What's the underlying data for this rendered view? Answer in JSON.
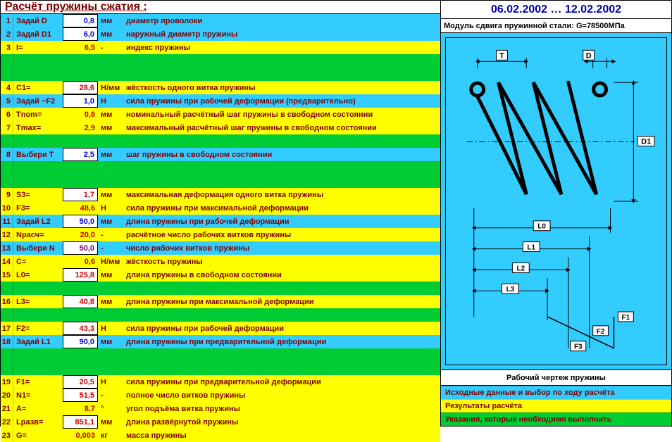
{
  "title": "Расчёт пружины сжатия :",
  "date_range": "06.02.2002 … 12.02.2002",
  "right_header": "Модуль сдвига пружинной стали: G=78500МПа",
  "drawing_caption": "Рабочий чертеж пружины",
  "colors": {
    "blue": "#33ccff",
    "green": "#00cc33",
    "yellow": "#ffff00",
    "white": "#ffffff"
  },
  "rows": [
    {
      "n": "1",
      "label": "Задай D",
      "val": "0,8",
      "unit": "мм",
      "desc": "диаметр проволоки",
      "bg": "blue",
      "box": true,
      "vc": "blue"
    },
    {
      "n": "2",
      "label": "Задай D1",
      "val": "6,0",
      "unit": "мм",
      "desc": "наружный диаметр пружины",
      "bg": "blue",
      "box": true,
      "vc": "blue"
    },
    {
      "n": "3",
      "label": "I=",
      "val": "6,5",
      "unit": "-",
      "desc": "индекс пружины",
      "bg": "yellow",
      "box": false,
      "vc": "red"
    },
    {
      "n": "",
      "label": "",
      "val": "",
      "unit": "",
      "desc": "",
      "bg": "green",
      "box": false
    },
    {
      "n": "",
      "label": "",
      "val": "",
      "unit": "",
      "desc": "",
      "bg": "green",
      "box": false
    },
    {
      "n": "4",
      "label": "C1=",
      "val": "28,6",
      "unit": "Н/мм",
      "desc": "жёсткость одного витка пружины",
      "bg": "yellow",
      "box": true,
      "vc": "red"
    },
    {
      "n": "5",
      "label": "Задай ~F2",
      "val": "1,0",
      "unit": "Н",
      "desc": "сила пружины при рабочей деформации (предварительно)",
      "bg": "blue",
      "box": true,
      "vc": "blue"
    },
    {
      "n": "6",
      "label": "Tnom=",
      "val": "0,8",
      "unit": "мм",
      "desc": "номинальный расчётный шаг пружины в свободном состоянии",
      "bg": "yellow",
      "box": false,
      "vc": "red"
    },
    {
      "n": "7",
      "label": "Tmax=",
      "val": "2,9",
      "unit": "мм",
      "desc": "максимальный расчётный шаг пружины в свободном состоянии",
      "bg": "yellow",
      "box": false,
      "vc": "red"
    },
    {
      "n": "",
      "label": "",
      "val": "",
      "unit": "",
      "desc": "",
      "bg": "green",
      "box": false
    },
    {
      "n": "8",
      "label": "Выбери T",
      "val": "2,5",
      "unit": "мм",
      "desc": "шаг пружины в свободном состоянии",
      "bg": "blue",
      "box": true,
      "vc": "blue"
    },
    {
      "n": "",
      "label": "",
      "val": "",
      "unit": "",
      "desc": "",
      "bg": "green",
      "box": false
    },
    {
      "n": "",
      "label": "",
      "val": "",
      "unit": "",
      "desc": "",
      "bg": "green",
      "box": false
    },
    {
      "n": "9",
      "label": "S3=",
      "val": "1,7",
      "unit": "мм",
      "desc": "максимальная деформация одного витка пружины",
      "bg": "yellow",
      "box": true,
      "vc": "red"
    },
    {
      "n": "10",
      "label": "F3=",
      "val": "48,6",
      "unit": "Н",
      "desc": "сила пружины при максимальной деформации",
      "bg": "yellow",
      "box": false,
      "vc": "red"
    },
    {
      "n": "11",
      "label": "Задай L2",
      "val": "50,0",
      "unit": "мм",
      "desc": "длина пружины при рабочей деформации",
      "bg": "blue",
      "box": true,
      "vc": "blue"
    },
    {
      "n": "12",
      "label": "Nрасч=",
      "val": "20,0",
      "unit": "-",
      "desc": "расчётное число рабочих витков пружины",
      "bg": "yellow",
      "box": false,
      "vc": "red"
    },
    {
      "n": "13",
      "label": "Выбери N",
      "val": "50,0",
      "unit": "-",
      "desc": "число рабочих витков пружины",
      "bg": "blue",
      "box": true,
      "vc": "purple"
    },
    {
      "n": "14",
      "label": "C=",
      "val": "0,6",
      "unit": "Н/мм",
      "desc": "жёсткость пружины",
      "bg": "yellow",
      "box": false,
      "vc": "red"
    },
    {
      "n": "15",
      "label": "L0=",
      "val": "125,8",
      "unit": "мм",
      "desc": "длина пружины в свободном состоянии",
      "bg": "yellow",
      "box": true,
      "vc": "red"
    },
    {
      "n": "",
      "label": "",
      "val": "",
      "unit": "",
      "desc": "",
      "bg": "green",
      "box": false
    },
    {
      "n": "16",
      "label": "L3=",
      "val": "40,8",
      "unit": "мм",
      "desc": "длина пружины при максимальной деформации",
      "bg": "yellow",
      "box": true,
      "vc": "red"
    },
    {
      "n": "",
      "label": "",
      "val": "",
      "unit": "",
      "desc": "",
      "bg": "green",
      "box": false
    },
    {
      "n": "17",
      "label": "F2=",
      "val": "43,3",
      "unit": "Н",
      "desc": "сила пружины при рабочей деформации",
      "bg": "yellow",
      "box": true,
      "vc": "red"
    },
    {
      "n": "18",
      "label": "Задай L1",
      "val": "90,0",
      "unit": "мм",
      "desc": "длина пружины при предварительной деформации",
      "bg": "blue",
      "box": true,
      "vc": "blue"
    },
    {
      "n": "",
      "label": "",
      "val": "",
      "unit": "",
      "desc": "",
      "bg": "green",
      "box": false
    },
    {
      "n": "",
      "label": "",
      "val": "",
      "unit": "",
      "desc": "",
      "bg": "green",
      "box": false
    },
    {
      "n": "19",
      "label": "F1=",
      "val": "20,5",
      "unit": "Н",
      "desc": "сила пружины при предварительной деформации",
      "bg": "yellow",
      "box": true,
      "vc": "red"
    },
    {
      "n": "20",
      "label": "N1=",
      "val": "51,5",
      "unit": "-",
      "desc": "полное число витков пружины",
      "bg": "yellow",
      "box": true,
      "vc": "red"
    },
    {
      "n": "21",
      "label": "A=",
      "val": "8,7",
      "unit": "°",
      "desc": "угол подъёма витка пружины",
      "bg": "yellow",
      "box": false,
      "vc": "red"
    },
    {
      "n": "22",
      "label": "Lразв=",
      "val": "851,1",
      "unit": "мм",
      "desc": "длина развёрнутой пружины",
      "bg": "yellow",
      "box": true,
      "vc": "red"
    },
    {
      "n": "23",
      "label": "G=",
      "val": "0,003",
      "unit": "кг",
      "desc": "масса пружины",
      "bg": "yellow",
      "box": false,
      "vc": "red"
    }
  ],
  "legend": [
    {
      "text": "Исходные данные и выбор по ходу расчёта",
      "bg": "blue"
    },
    {
      "text": "Результаты расчёта",
      "bg": "yellow"
    },
    {
      "text": "Указания, которые необходимо выполнить",
      "bg": "green"
    }
  ],
  "diagram_labels": {
    "T": "T",
    "D": "D",
    "D1": "D1",
    "L0": "L0",
    "L1": "L1",
    "L2": "L2",
    "L3": "L3",
    "F1": "F1",
    "F2": "F2",
    "F3": "F3"
  }
}
